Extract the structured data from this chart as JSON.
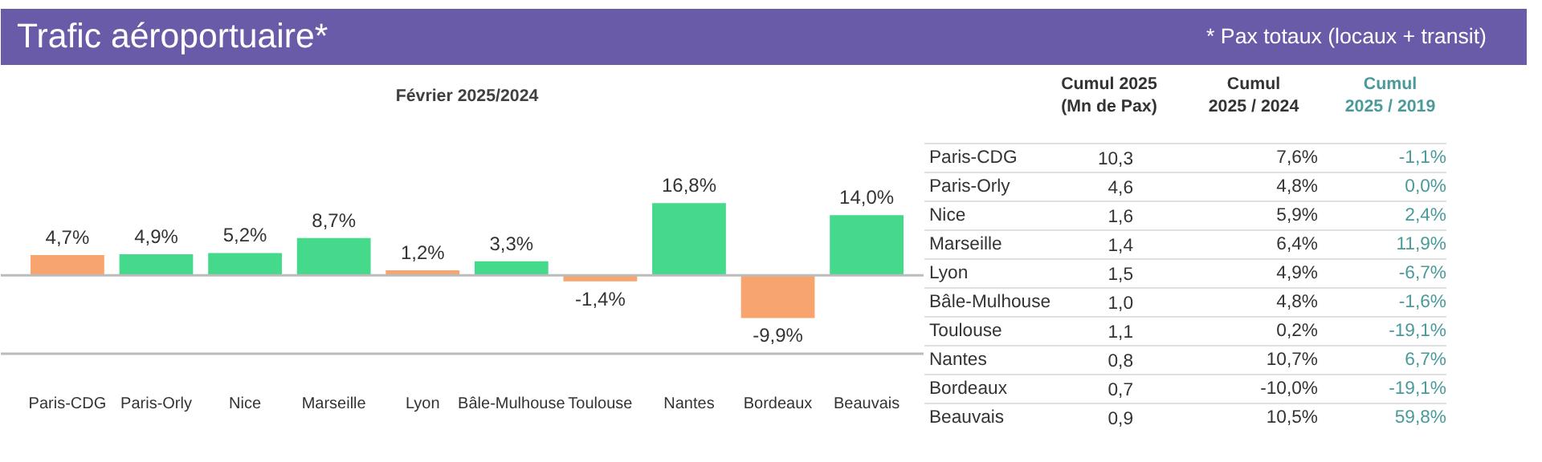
{
  "chart_data": [
    {
      "type": "other",
      "title": "Trafic aéroportuaire*",
      "annotations": [
        "* Pax totaux (locaux + transit)"
      ],
      "color": "#6a5ba8"
    },
    {
      "type": "bar",
      "title": "Février 2025/2024",
      "categories": [
        "Paris-CDG",
        "Paris-Orly",
        "Nice",
        "Marseille",
        "Lyon",
        "Bâle-Mulhouse",
        "Toulouse",
        "Nantes",
        "Bordeaux",
        "Beauvais"
      ],
      "values": [
        4.7,
        4.9,
        5.2,
        8.7,
        1.2,
        3.3,
        -1.4,
        16.8,
        -9.9,
        14.0
      ],
      "colors": [
        "#f8a46e",
        "#45d98c",
        "#45d98c",
        "#45d98c",
        "#f8a46e",
        "#45d98c",
        "#f8a46e",
        "#45d98c",
        "#f8a46e",
        "#45d98c"
      ],
      "value_labels": [
        "4,7%",
        "4,9%",
        "5,2%",
        "8,7%",
        "1,2%",
        "3,3%",
        "-1,4%",
        "16,8%",
        "-9,9%",
        "14,0%"
      ]
    },
    {
      "type": "other",
      "categories": [
        "Cumul 2025\n(Mn de Pax)",
        "Cumul\n2025 / 2024",
        "Cumul\n2025 / 2019"
      ],
      "colors": [
        "#333333",
        "#333333",
        "#4a9a9a"
      ],
      "y_categories": [
        "Paris-CDG",
        "Paris-Orly",
        "Nice",
        "Marseille",
        "Lyon",
        "Bâle-Mulhouse",
        "Toulouse",
        "Nantes",
        "Bordeaux",
        "Beauvais"
      ],
      "cell_labels": [
        [
          "10,3",
          "7,6%",
          "-1,1%"
        ],
        [
          "4,6",
          "4,8%",
          "0,0%"
        ],
        [
          "1,6",
          "5,9%",
          "2,4%"
        ],
        [
          "1,4",
          "6,4%",
          "11,9%"
        ],
        [
          "1,5",
          "4,9%",
          "-6,7%"
        ],
        [
          "1,0",
          "4,8%",
          "-1,6%"
        ],
        [
          "1,1",
          "0,2%",
          "-19,1%"
        ],
        [
          "0,8",
          "10,7%",
          "6,7%"
        ],
        [
          "0,7",
          "-10,0%",
          "-19,1%"
        ],
        [
          "0,9",
          "10,5%",
          "59,8%"
        ]
      ]
    }
  ]
}
